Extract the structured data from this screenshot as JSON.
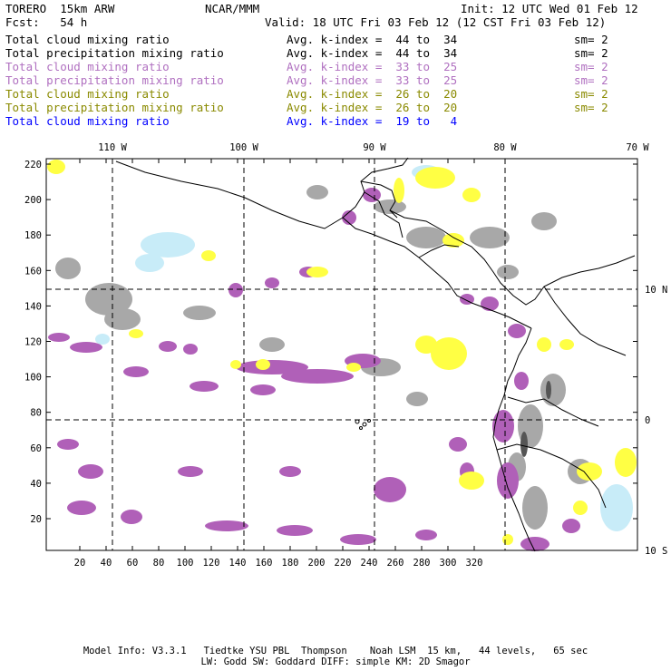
{
  "header": {
    "model": "TORERO  15km ARW",
    "org": "NCAR/MMM",
    "init": "Init: 12 UTC Wed 01 Feb 12",
    "fcst": "Fcst:   54 h",
    "valid": "Valid: 18 UTC Fri 03 Feb 12 (12 CST Fri 03 Feb 12)"
  },
  "legend": [
    {
      "field": "Total cloud mixing ratio",
      "index": "Avg. k-index =  44 to  34",
      "sm": "sm= 2",
      "color": "#000000"
    },
    {
      "field": "Total precipitation mixing ratio",
      "index": "Avg. k-index =  44 to  34",
      "sm": "sm= 2",
      "color": "#000000"
    },
    {
      "field": "Total cloud mixing ratio",
      "index": "Avg. k-index =  33 to  25",
      "sm": "sm= 2",
      "color": "#b070c0"
    },
    {
      "field": "Total precipitation mixing ratio",
      "index": "Avg. k-index =  33 to  25",
      "sm": "sm= 2",
      "color": "#b070c0"
    },
    {
      "field": "Total cloud mixing ratio",
      "index": "Avg. k-index =  26 to  20",
      "sm": "sm= 2",
      "color": "#8a8a00"
    },
    {
      "field": "Total precipitation mixing ratio",
      "index": "Avg. k-index =  26 to  20",
      "sm": "sm= 2",
      "color": "#8a8a00"
    },
    {
      "field": "Total cloud mixing ratio",
      "index": "Avg. k-index =  19 to   4",
      "sm": "",
      "color": "#0000ff"
    }
  ],
  "map": {
    "x_ticks": [
      20,
      40,
      60,
      80,
      100,
      120,
      140,
      160,
      180,
      200,
      220,
      240,
      260,
      280,
      300,
      320
    ],
    "y_ticks": [
      20,
      40,
      60,
      80,
      100,
      120,
      140,
      160,
      180,
      200,
      220
    ],
    "lon_labels": [
      "110 W",
      "100 W",
      "90 W",
      "80 W",
      "70 W"
    ],
    "lat_labels": [
      "10 N",
      "0",
      "10 S"
    ],
    "colors": {
      "gray": "#a8a8a8",
      "purple": "#b060b8",
      "yellow": "#ffff44",
      "lightblue": "#c8ecf8",
      "coast": "#000000"
    }
  },
  "footer": {
    "line1": "Model Info: V3.3.1   Tiedtke YSU PBL  Thompson    Noah LSM  15 km,   44 levels,   65 sec",
    "line2": "LW: Godd SW: Goddard DIFF: simple KM: 2D Smagor"
  }
}
